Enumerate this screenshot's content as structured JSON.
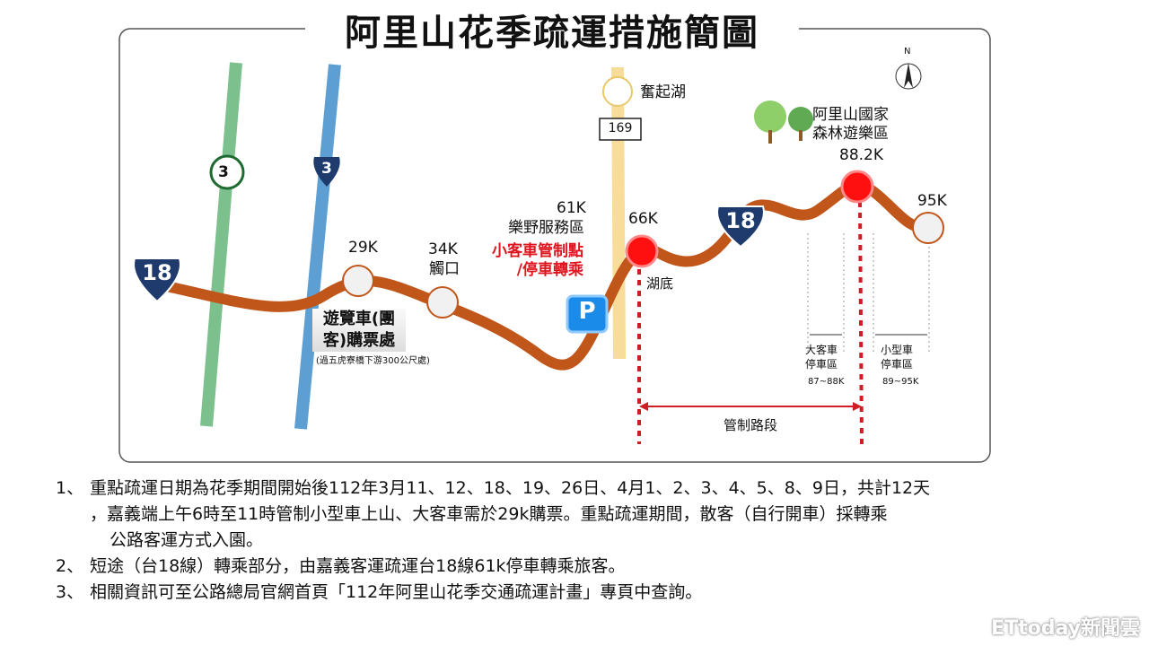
{
  "title": "阿里山花季疏運措施簡圖",
  "compass": {
    "label": "N"
  },
  "highways": {
    "prov3": "3",
    "nat3": "3",
    "route18_left": "18",
    "route18_right": "18",
    "route169": "169"
  },
  "places": {
    "lake": "奮起湖",
    "park": "阿里山國家\n森林遊樂區",
    "k29": "29K",
    "k34": "34K",
    "k34_name": "觸口",
    "k61": "61K",
    "k61_name": "樂野服務區",
    "control_point": "小客車管制點\n/停車轉乘",
    "parking": "P",
    "k66": "66K",
    "k66_name": "湖底",
    "k88": "88.2K",
    "k95": "95K",
    "booth": "遊覽車(團\n客)購票處",
    "booth_note": "(過五虎寮橋下游300公尺處)",
    "bus_parking": "大客車\n停車區",
    "bus_parking_range": "87~88K",
    "car_parking": "小型車\n停車區",
    "car_parking_range": "89~95K",
    "control_section": "管制路段"
  },
  "notes": [
    {
      "num": "1、",
      "lines": [
        "重點疏運日期為花季期間開始後112年3月11、12、18、19、26日、4月1、2、3、4、5、8、9日，共計12天",
        "，嘉義端上午6時至11時管制小型車上山、大客車需於29k購票。重點疏運期間，散客（自行開車）採轉乘",
        "公路客運方式入園。"
      ]
    },
    {
      "num": "2、",
      "lines": [
        "短途（台18線）轉乘部分，由嘉義客運疏運台18線61k停車轉乘旅客。"
      ]
    },
    {
      "num": "3、",
      "lines": [
        "相關資訊可至公路總局官網首頁「112年阿里山花季交通疏運計畫」專頁中查詢。"
      ]
    }
  ],
  "watermark": "ETtoday新聞雲",
  "colors": {
    "route": "#c1561a",
    "prov3": "#7cc08d",
    "nat3": "#5d9fd3",
    "route169": "#f8dd9a",
    "red": "#e0141e",
    "shield": "#1f3b6e"
  }
}
